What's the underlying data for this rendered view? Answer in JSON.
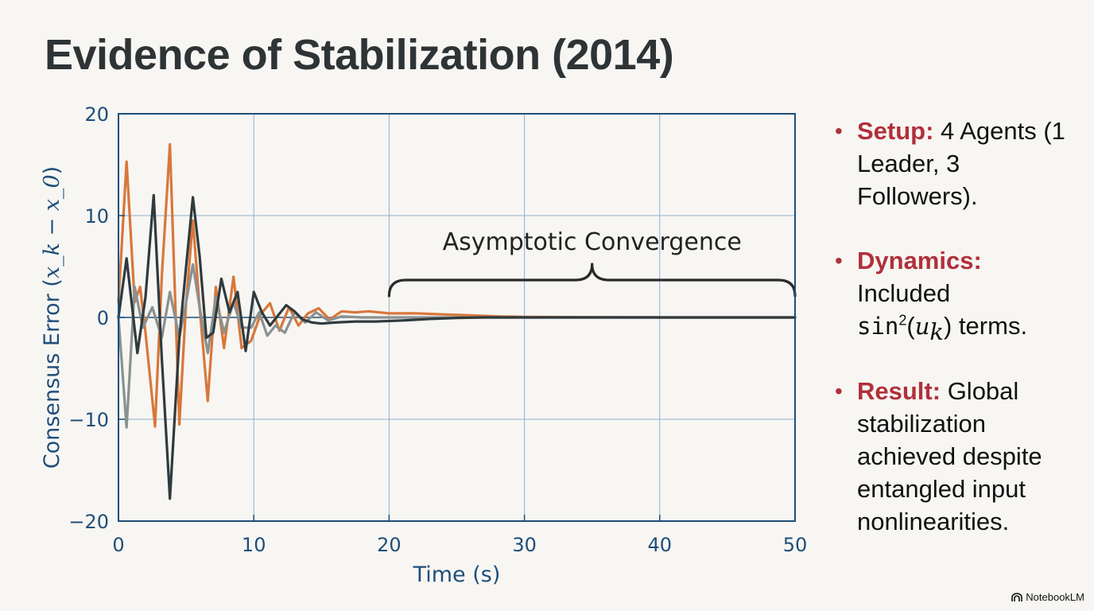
{
  "title": "Evidence of Stabilization (2014)",
  "chart_data": {
    "type": "line",
    "xlabel": "Time (s)",
    "ylabel_prefix": "Consensus Error (",
    "ylabel_math": "x_k − x_0",
    "ylabel_suffix": ")",
    "xlim": [
      0,
      50
    ],
    "ylim": [
      -20,
      20
    ],
    "xticks": [
      0,
      10,
      20,
      30,
      40,
      50
    ],
    "yticks": [
      20,
      10,
      0,
      -10,
      -20
    ],
    "xtick_labels": [
      "0",
      "10",
      "20",
      "30",
      "40",
      "50"
    ],
    "ytick_labels": [
      "20",
      "10",
      "0",
      "−10",
      "−20"
    ],
    "grid": true,
    "colors": {
      "axis": "#1f4e79",
      "grid": "#8fb0cc",
      "series_orange": "#d9773a",
      "series_gray": "#8a9191",
      "series_dark": "#2f3a3d"
    },
    "annotation": {
      "text": "Asymptotic Convergence",
      "x_range": [
        20,
        50
      ]
    },
    "series": [
      {
        "color": "#d9773a",
        "x": [
          0,
          0.6,
          1.2,
          1.6,
          2.0,
          2.7,
          3.2,
          3.8,
          4.5,
          5.0,
          5.5,
          6.0,
          6.6,
          7.2,
          7.8,
          8.5,
          9.1,
          9.8,
          10.5,
          11.2,
          11.9,
          12.6,
          13.3,
          14.0,
          14.8,
          15.6,
          16.5,
          17.5,
          18.5,
          20,
          22,
          24,
          26,
          28,
          30,
          35,
          40,
          45,
          50
        ],
        "y": [
          1.5,
          15.3,
          1.5,
          3.0,
          -1.5,
          -10.7,
          4.0,
          17.0,
          -10.5,
          1.5,
          9.5,
          1.0,
          -8.2,
          3.0,
          -3.0,
          4.0,
          -3.0,
          -2.3,
          0.3,
          1.4,
          -1.3,
          1.0,
          -0.8,
          0.4,
          0.9,
          -0.2,
          0.6,
          0.5,
          0.6,
          0.4,
          0.4,
          0.3,
          0.2,
          0.1,
          0.05,
          0.02,
          0.0,
          0.0,
          0.0
        ]
      },
      {
        "color": "#8a9191",
        "x": [
          0,
          0.6,
          1.2,
          1.8,
          2.5,
          3.2,
          3.8,
          4.5,
          5.0,
          5.5,
          6.0,
          6.6,
          7.2,
          7.8,
          8.5,
          9.1,
          9.8,
          10.4,
          11.0,
          11.6,
          12.3,
          13.0,
          13.8,
          14.6,
          15.5,
          16.5,
          18,
          20,
          22,
          25,
          30,
          40,
          50
        ],
        "y": [
          0,
          -10.8,
          3.0,
          -1.0,
          1.0,
          -2.0,
          2.5,
          -2.0,
          1.5,
          5.2,
          1.0,
          -3.5,
          2.0,
          -1.5,
          1.5,
          -1.0,
          -1.0,
          0.5,
          -1.8,
          -0.8,
          -1.5,
          0.5,
          -0.5,
          0.5,
          -0.3,
          0.1,
          0.0,
          0.0,
          0.0,
          0.0,
          0.0,
          0.0,
          0.0
        ]
      },
      {
        "color": "#2f3a3d",
        "x": [
          0,
          0.6,
          1.4,
          2.0,
          2.6,
          3.2,
          3.8,
          4.5,
          5.0,
          5.5,
          6.0,
          6.5,
          7.0,
          7.6,
          8.2,
          8.8,
          9.4,
          10.0,
          10.6,
          11.2,
          11.8,
          12.4,
          13.0,
          13.6,
          14.3,
          15.0,
          16.0,
          17.5,
          19,
          21,
          23,
          25,
          27,
          30,
          35,
          40,
          45,
          50
        ],
        "y": [
          0,
          5.8,
          -3.5,
          2.0,
          12.0,
          -4.0,
          -17.8,
          -2.0,
          5.0,
          11.8,
          6.0,
          -2.0,
          -1.5,
          3.8,
          0.5,
          2.5,
          -3.3,
          2.5,
          0.5,
          -0.8,
          0.2,
          1.2,
          0.6,
          -0.2,
          -0.5,
          -0.6,
          -0.5,
          -0.4,
          -0.4,
          -0.3,
          -0.15,
          -0.05,
          0.0,
          0.0,
          0.0,
          0.0,
          0.0,
          0.0
        ]
      }
    ]
  },
  "bullets": [
    {
      "label": "Setup:",
      "text": " 4 Agents (1 Leader, 3 Followers)."
    },
    {
      "label": "Dynamics:",
      "line1": "Included",
      "math_func": "sin",
      "math_sup": "2",
      "math_arg_open": "(",
      "math_var": "u",
      "math_sub": "k",
      "math_arg_close": ")",
      "tail": " terms."
    },
    {
      "label": "Result:",
      "text": " Global stabilization achieved despite entangled input nonlinearities."
    }
  ],
  "watermark": {
    "icon": "notebooklm-icon",
    "text": "NotebookLM"
  }
}
